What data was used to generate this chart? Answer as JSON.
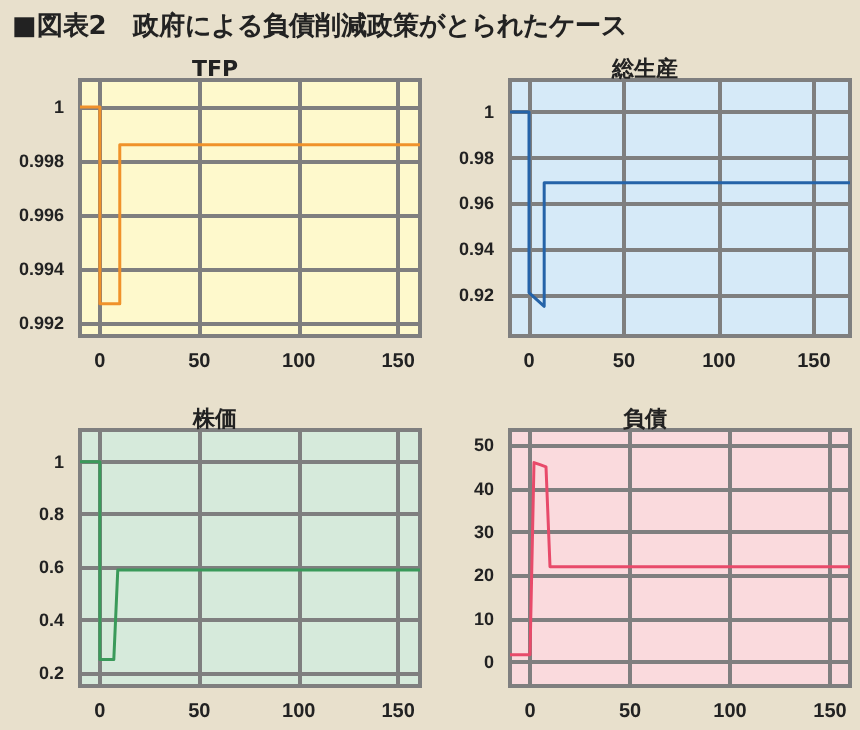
{
  "chart_data": [
    {
      "type": "line",
      "title": "TFP",
      "annotations": [
        "■図表2　政府による負債削減政策がとられたケース"
      ],
      "xlim": [
        -10,
        161
      ],
      "xticks": [
        0,
        50,
        100,
        150
      ],
      "ylim": [
        0.9915,
        1.001
      ],
      "yticks": [
        0.992,
        0.994,
        0.996,
        0.998,
        1
      ],
      "grid": true,
      "marker": "none",
      "series": [
        {
          "color": "#f0922a",
          "x": [
            -10,
            0,
            0,
            10,
            10,
            161
          ],
          "values": [
            1,
            1,
            0.9927,
            0.9927,
            0.9986,
            0.9986
          ]
        }
      ]
    },
    {
      "type": "line",
      "title": "総生産",
      "xlim": [
        -10,
        169
      ],
      "xticks": [
        0,
        50,
        100,
        150
      ],
      "ylim": [
        0.902,
        1.014
      ],
      "yticks": [
        0.92,
        0.94,
        0.96,
        0.98,
        1
      ],
      "grid": true,
      "marker": "none",
      "series": [
        {
          "color": "#2563a8",
          "x": [
            -10,
            0,
            0,
            8,
            8,
            169
          ],
          "values": [
            1,
            1,
            0.921,
            0.915,
            0.969,
            0.969
          ]
        }
      ]
    },
    {
      "type": "line",
      "title": "株価",
      "xlim": [
        -10,
        161
      ],
      "xticks": [
        0,
        50,
        100,
        150
      ],
      "ylim": [
        0.15,
        1.12
      ],
      "yticks": [
        0.2,
        0.4,
        0.6,
        0.8,
        1
      ],
      "grid": true,
      "marker": "none",
      "series": [
        {
          "color": "#3a9a5a",
          "x": [
            -10,
            0,
            0,
            7,
            9,
            161
          ],
          "values": [
            1,
            1,
            0.25,
            0.25,
            0.59,
            0.59
          ]
        }
      ]
    },
    {
      "type": "line",
      "title": "負債",
      "xlim": [
        -10,
        160
      ],
      "xticks": [
        0,
        50,
        100,
        150
      ],
      "ylim": [
        -5.5,
        53.5
      ],
      "yticks": [
        0,
        10,
        20,
        30,
        40,
        50
      ],
      "grid": true,
      "marker": "none",
      "series": [
        {
          "color": "#e84a6a",
          "x": [
            -10,
            0,
            2,
            5,
            8,
            10,
            160
          ],
          "values": [
            1.7,
            1.7,
            46,
            45.5,
            45,
            22,
            22
          ]
        }
      ]
    }
  ]
}
